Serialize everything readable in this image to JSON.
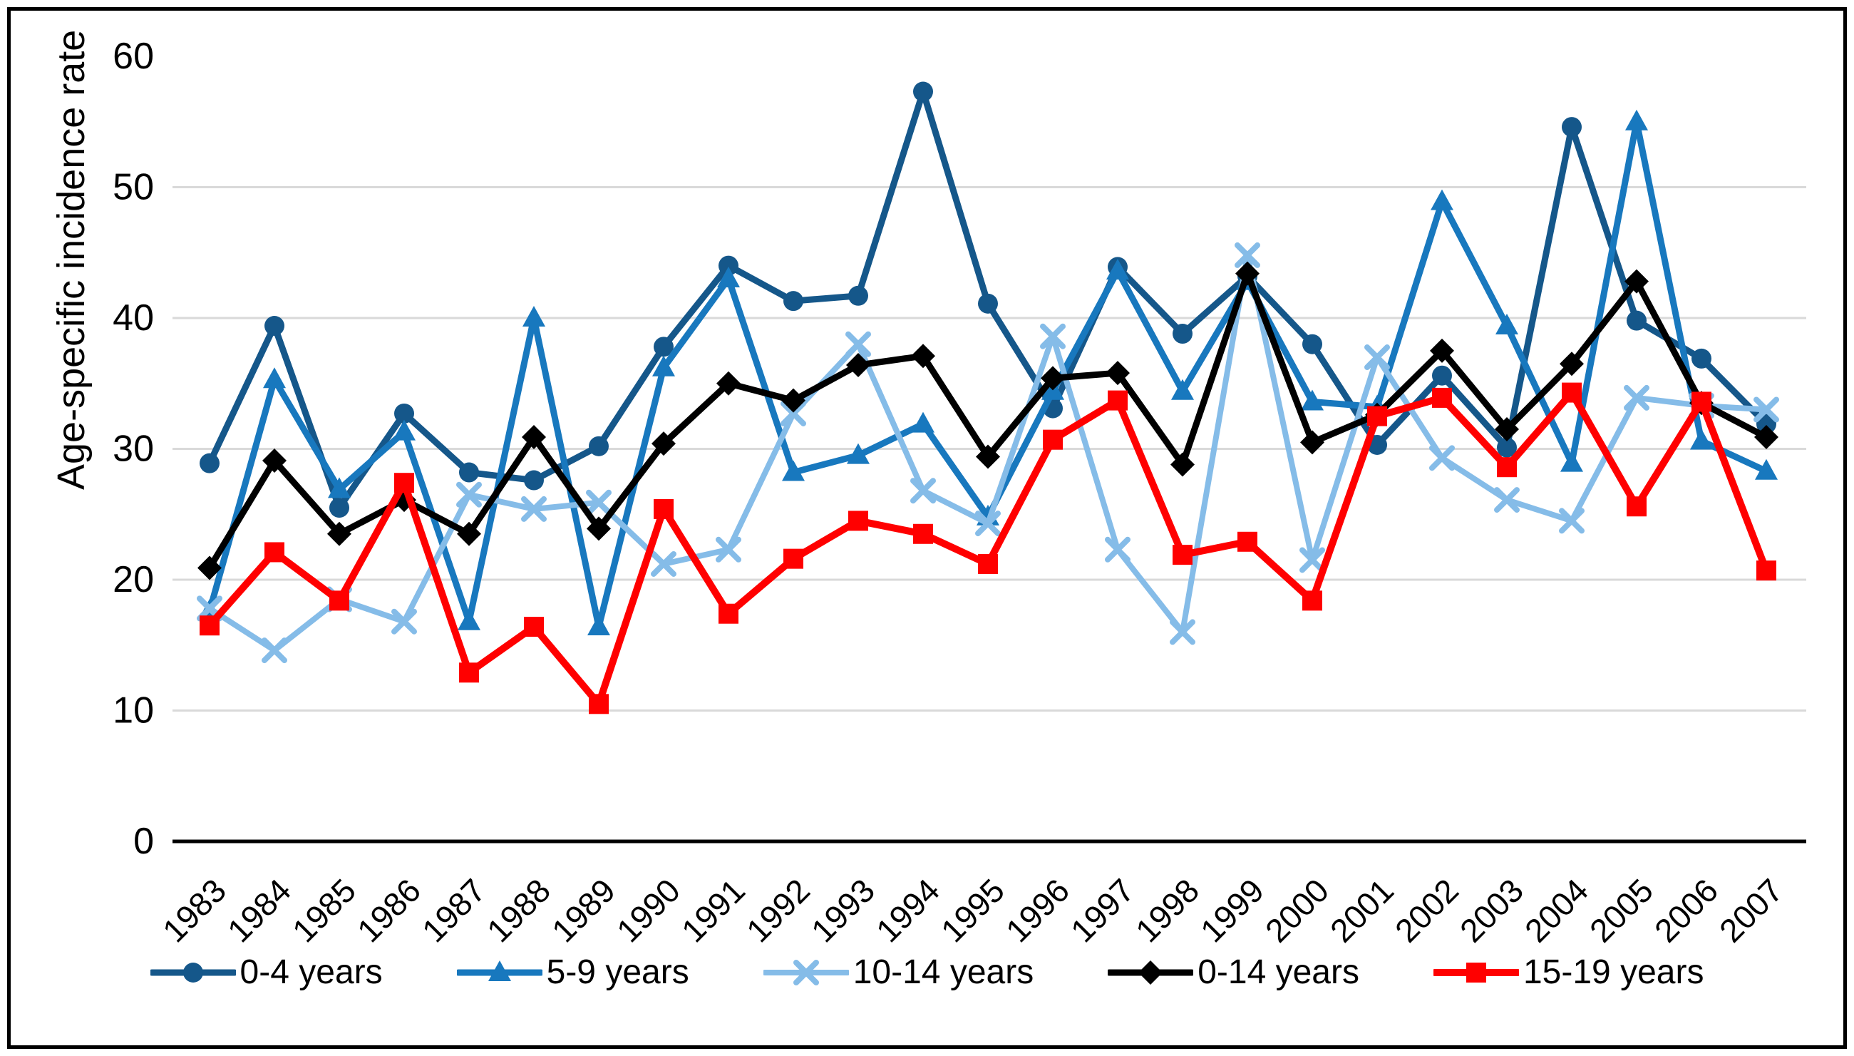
{
  "figure": {
    "background": "#ffffff",
    "frame_color": "#000000",
    "gridline_color": "#d9d9d9",
    "axis_color": "#000000"
  },
  "chart_data": {
    "type": "line",
    "title": "",
    "xlabel": "",
    "ylabel": "Age-specific incidence rate",
    "ylim": [
      0,
      60
    ],
    "y_ticks": [
      0,
      10,
      20,
      30,
      40,
      50,
      60
    ],
    "grid": "horizontal",
    "legend_position": "bottom",
    "categories": [
      1983,
      1984,
      1985,
      1986,
      1987,
      1988,
      1989,
      1990,
      1991,
      1992,
      1993,
      1994,
      1995,
      1996,
      1997,
      1998,
      1999,
      2000,
      2001,
      2002,
      2003,
      2004,
      2005,
      2006,
      2007
    ],
    "series": [
      {
        "name": "0-4 years",
        "marker": "circle",
        "color": "#15578a",
        "line_width": 9,
        "values": [
          28.9,
          39.4,
          25.5,
          32.7,
          28.2,
          27.6,
          30.2,
          37.8,
          44.0,
          41.3,
          41.7,
          57.3,
          41.1,
          33.1,
          43.9,
          38.8,
          43.2,
          38.0,
          30.3,
          35.6,
          30.1,
          54.6,
          39.8,
          36.9,
          31.9
        ]
      },
      {
        "name": "5-9 years",
        "marker": "triangle",
        "color": "#1878be",
        "line_width": 9,
        "values": [
          17.6,
          35.3,
          26.9,
          31.3,
          16.8,
          40.0,
          16.4,
          36.2,
          43.0,
          28.2,
          29.5,
          31.9,
          24.8,
          34.4,
          43.6,
          34.4,
          42.8,
          33.6,
          33.2,
          48.9,
          39.4,
          28.9,
          55.0,
          30.6,
          28.3
        ]
      },
      {
        "name": "10-14 years",
        "marker": "x",
        "color": "#85bce8",
        "line_width": 8,
        "values": [
          17.8,
          14.6,
          18.5,
          16.8,
          26.5,
          25.4,
          25.9,
          21.2,
          22.3,
          32.7,
          38.0,
          26.8,
          24.3,
          38.6,
          22.3,
          16.0,
          44.8,
          21.5,
          37.0,
          29.3,
          26.1,
          24.5,
          33.9,
          33.3,
          33.0
        ]
      },
      {
        "name": "0-14 years",
        "marker": "diamond",
        "color": "#000000",
        "line_width": 9,
        "values": [
          20.9,
          29.1,
          23.5,
          26.1,
          23.5,
          30.9,
          23.9,
          30.4,
          35.0,
          33.7,
          36.4,
          37.1,
          29.4,
          35.4,
          35.8,
          28.8,
          43.4,
          30.5,
          32.6,
          37.5,
          31.5,
          36.5,
          42.8,
          33.5,
          30.9
        ]
      },
      {
        "name": "15-19 years",
        "marker": "square",
        "color": "#ff0000",
        "line_width": 10,
        "values": [
          16.5,
          22.1,
          18.4,
          27.4,
          12.9,
          16.4,
          10.5,
          25.4,
          17.4,
          21.6,
          24.5,
          23.5,
          21.2,
          30.7,
          33.7,
          21.9,
          22.9,
          18.4,
          32.5,
          33.9,
          28.6,
          34.3,
          25.6,
          33.6,
          20.7
        ]
      }
    ]
  }
}
